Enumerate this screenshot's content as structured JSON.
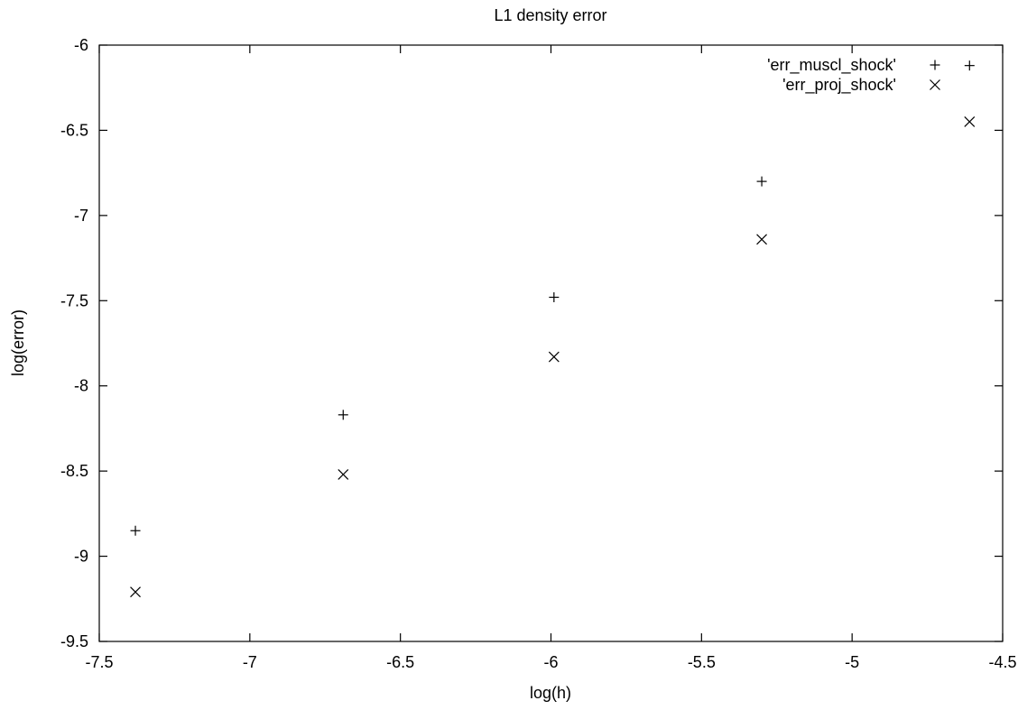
{
  "chart_data": {
    "type": "scatter",
    "title": "L1 density error",
    "xlabel": "log(h)",
    "ylabel": "log(error)",
    "xlim": [
      -7.5,
      -4.5
    ],
    "ylim": [
      -9.5,
      -6
    ],
    "grid": false,
    "legend_position": "top-right",
    "x_ticks": [
      {
        "value": -7.5,
        "label": "-7.5"
      },
      {
        "value": -7,
        "label": "-7"
      },
      {
        "value": -6.5,
        "label": "-6.5"
      },
      {
        "value": -6,
        "label": "-6"
      },
      {
        "value": -5.5,
        "label": "-5.5"
      },
      {
        "value": -5,
        "label": "-5"
      },
      {
        "value": -4.5,
        "label": "-4.5"
      }
    ],
    "y_ticks": [
      {
        "value": -6,
        "label": "-6"
      },
      {
        "value": -6.5,
        "label": "-6.5"
      },
      {
        "value": -7,
        "label": "-7"
      },
      {
        "value": -7.5,
        "label": "-7.5"
      },
      {
        "value": -8,
        "label": "-8"
      },
      {
        "value": -8.5,
        "label": "-8.5"
      },
      {
        "value": -9,
        "label": "-9"
      },
      {
        "value": -9.5,
        "label": "-9.5"
      }
    ],
    "series": [
      {
        "name": "'err_muscl_shock'",
        "marker": "plus",
        "points": [
          {
            "x": -7.38,
            "y": -8.85
          },
          {
            "x": -6.69,
            "y": -8.17
          },
          {
            "x": -5.99,
            "y": -7.48
          },
          {
            "x": -5.3,
            "y": -6.8
          },
          {
            "x": -4.61,
            "y": -6.12
          }
        ]
      },
      {
        "name": "'err_proj_shock'",
        "marker": "cross",
        "points": [
          {
            "x": -7.38,
            "y": -9.21
          },
          {
            "x": -6.69,
            "y": -8.52
          },
          {
            "x": -5.99,
            "y": -7.83
          },
          {
            "x": -5.3,
            "y": -7.14
          },
          {
            "x": -4.61,
            "y": -6.45
          }
        ]
      }
    ]
  }
}
